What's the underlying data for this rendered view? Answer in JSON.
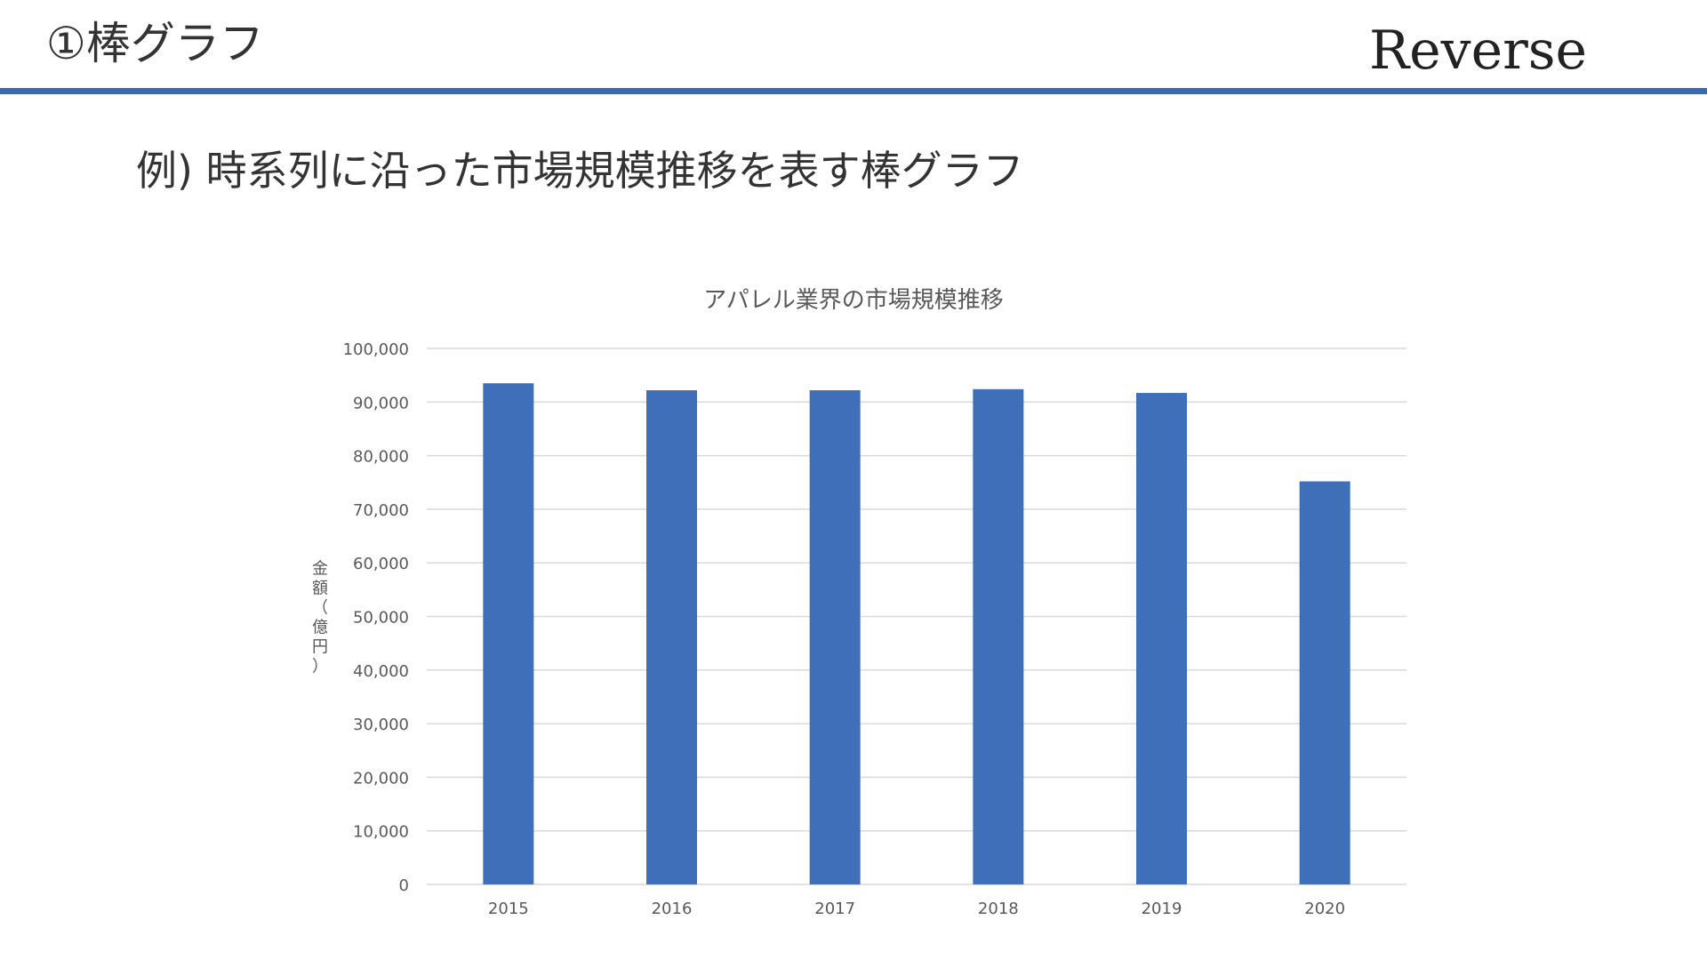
{
  "header": {
    "section_title": "①棒グラフ",
    "brand": "Reverse",
    "accent_color": "#3c69b3"
  },
  "slide": {
    "subtitle": "例) 時系列に沿った市場規模推移を表す棒グラフ"
  },
  "chart_data": {
    "type": "bar",
    "title": "アパレル業界の市場規模推移",
    "xlabel": "",
    "ylabel": "金額（億円）",
    "categories": [
      "2015",
      "2016",
      "2017",
      "2018",
      "2019",
      "2020"
    ],
    "values": [
      93500,
      92200,
      92200,
      92400,
      91700,
      75200
    ],
    "ylim": [
      0,
      100000
    ],
    "yticks": [
      0,
      10000,
      20000,
      30000,
      40000,
      50000,
      60000,
      70000,
      80000,
      90000,
      100000
    ],
    "ytick_labels": [
      "0",
      "10,000",
      "20,000",
      "30,000",
      "40,000",
      "50,000",
      "60,000",
      "70,000",
      "80,000",
      "90,000",
      "100,000"
    ],
    "grid": true,
    "legend": "none",
    "bar_color": "#3f6fb8",
    "grid_color": "#d9d9d9",
    "text_color": "#595959"
  }
}
